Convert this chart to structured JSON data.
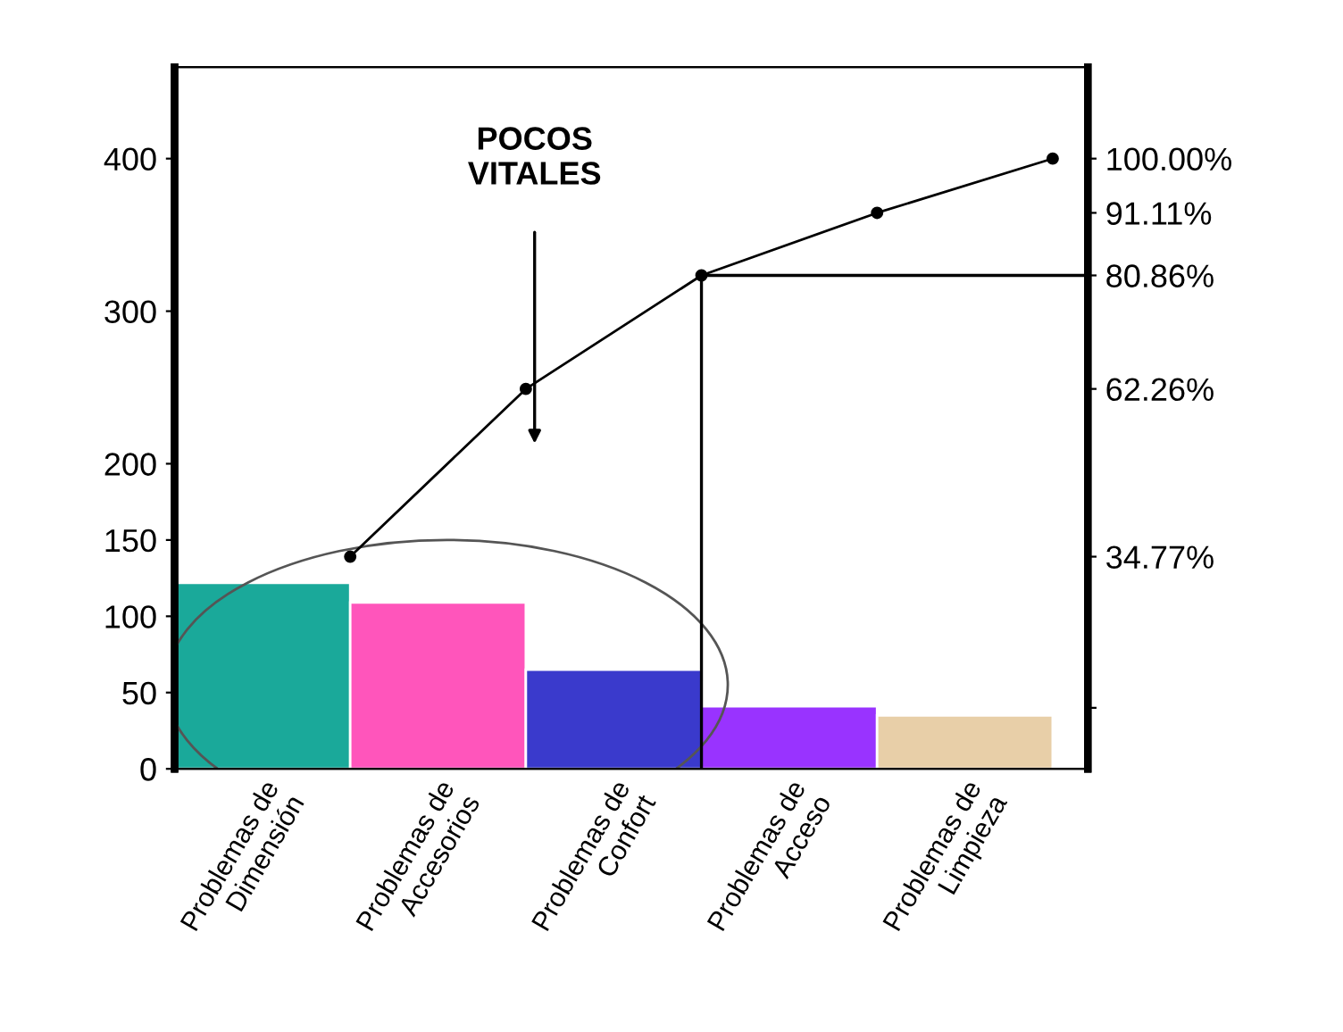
{
  "chart_data": {
    "type": "bar",
    "categories": [
      "Problemas de\nDimensión",
      "Problemas de\nAccesorios",
      "Problemas de\nConfort",
      "Problemas de\nAcceso",
      "Problemas de\nLimpieza"
    ],
    "series": [
      {
        "colors": [
          "#1aa99a",
          "#ff55bb",
          "#3a3acc",
          "#9933ff",
          "#e8cfa8"
        ],
        "values": [
          122,
          109,
          65,
          41,
          35
        ]
      },
      {
        "type": "line",
        "axis": "y2",
        "color": "#000000",
        "marker": "circle",
        "values": [
          34.77,
          62.26,
          80.86,
          91.11,
          100.0
        ]
      }
    ],
    "ylim": [
      0,
      460
    ],
    "yticks": [
      0,
      50,
      100,
      150,
      200,
      300,
      400
    ],
    "y2lim": [
      0,
      115
    ],
    "y2ticks": [
      {
        "value": 10,
        "label": null
      },
      {
        "value": 34.77,
        "label": "34.77%"
      },
      {
        "value": 62.26,
        "label": "62.26%"
      },
      {
        "value": 80.86,
        "label": "80.86%"
      },
      {
        "value": 91.11,
        "label": "91.11%"
      },
      {
        "value": 100.0,
        "label": "100.00%"
      }
    ],
    "ref_lines": [
      {
        "axis": "y2",
        "value": 80.86,
        "color": "#000000"
      }
    ],
    "annotations": [
      "POCOS\nVITALES"
    ],
    "grid": false,
    "legend": false
  }
}
